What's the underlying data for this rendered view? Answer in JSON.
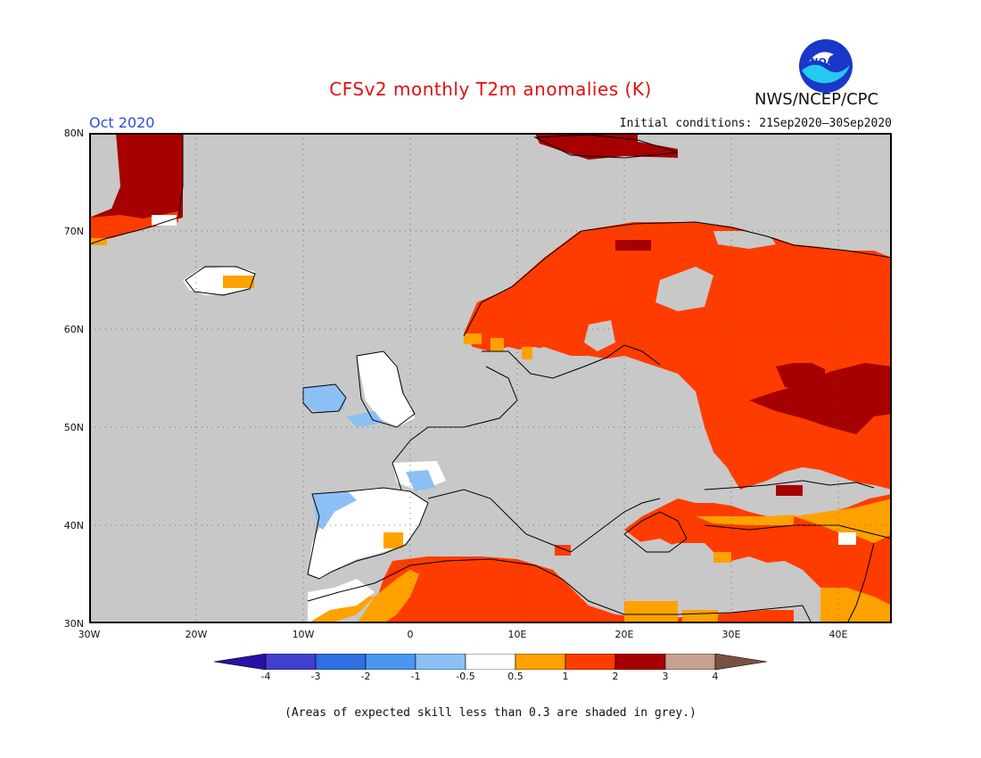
{
  "title": "CFSv2 monthly T2m anomalies (K)",
  "agency": "NWS/NCEP/CPC",
  "logo_text": "NOAA",
  "period": "Oct 2020",
  "initial_conditions": "Initial conditions: 21Sep2020–30Sep2020",
  "footnote": "(Areas of expected skill less than 0.3 are shaded in grey.)",
  "map": {
    "lat_labels": [
      "80N",
      "70N",
      "60N",
      "50N",
      "40N",
      "30N"
    ],
    "lon_labels": [
      "30W",
      "20W",
      "10W",
      "0",
      "10E",
      "20E",
      "30E",
      "40E"
    ],
    "extent": {
      "lon_min": -30,
      "lon_max": 45,
      "lat_min": 30,
      "lat_max": 80
    },
    "grey_color": "#c8c8c8"
  },
  "colorbar": {
    "labels": [
      "-4",
      "-3",
      "-2",
      "-1",
      "-0.5",
      "0.5",
      "1",
      "2",
      "3",
      "4"
    ],
    "colors": [
      "#2a10a8",
      "#4040d0",
      "#2f6fe0",
      "#4a96f0",
      "#8cc0f4",
      "#ffffff",
      "#ffa200",
      "#ff3c00",
      "#a60000",
      "#c8a090",
      "#7a5040"
    ]
  }
}
